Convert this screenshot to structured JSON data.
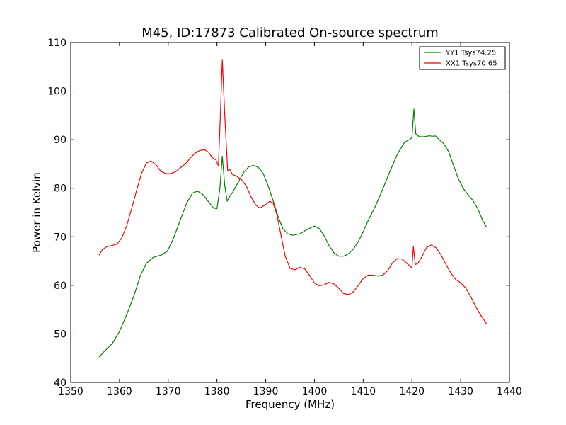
{
  "chart_data": {
    "type": "line",
    "title": "M45, ID:17873 Calibrated On-source spectrum",
    "xlabel": "Frequency (MHz)",
    "ylabel": "Power in Kelvin",
    "xlim": [
      1350,
      1440
    ],
    "ylim": [
      40,
      110
    ],
    "xticks": [
      1350,
      1360,
      1370,
      1380,
      1390,
      1400,
      1410,
      1420,
      1430,
      1440
    ],
    "yticks": [
      40,
      50,
      60,
      70,
      80,
      90,
      100,
      110
    ],
    "grid": false,
    "legend_position": "top-right",
    "series": [
      {
        "name": "YY1 Tsys74.25",
        "color": "#008000",
        "points": [
          [
            1355.8,
            45.2
          ],
          [
            1357.0,
            46.5
          ],
          [
            1358.5,
            48.0
          ],
          [
            1360.0,
            50.5
          ],
          [
            1361.5,
            54.0
          ],
          [
            1363.0,
            58.0
          ],
          [
            1364.3,
            62.0
          ],
          [
            1365.5,
            64.5
          ],
          [
            1367.0,
            65.8
          ],
          [
            1368.5,
            66.2
          ],
          [
            1369.8,
            67.0
          ],
          [
            1371.0,
            69.5
          ],
          [
            1372.5,
            73.5
          ],
          [
            1373.8,
            77.0
          ],
          [
            1375.0,
            79.0
          ],
          [
            1376.0,
            79.4
          ],
          [
            1377.0,
            78.8
          ],
          [
            1378.2,
            77.3
          ],
          [
            1379.3,
            75.9
          ],
          [
            1380.0,
            75.8
          ],
          [
            1380.6,
            80.0
          ],
          [
            1381.1,
            86.6
          ],
          [
            1381.6,
            80.5
          ],
          [
            1382.1,
            77.3
          ],
          [
            1382.6,
            78.3
          ],
          [
            1383.3,
            79.3
          ],
          [
            1384.5,
            81.5
          ],
          [
            1385.5,
            83.3
          ],
          [
            1386.5,
            84.4
          ],
          [
            1387.5,
            84.7
          ],
          [
            1388.5,
            84.3
          ],
          [
            1389.5,
            83.0
          ],
          [
            1390.5,
            80.5
          ],
          [
            1391.5,
            77.5
          ],
          [
            1392.5,
            74.3
          ],
          [
            1393.5,
            71.7
          ],
          [
            1394.5,
            70.6
          ],
          [
            1395.5,
            70.3
          ],
          [
            1397.0,
            70.6
          ],
          [
            1398.5,
            71.5
          ],
          [
            1400.0,
            72.2
          ],
          [
            1401.0,
            71.7
          ],
          [
            1402.0,
            70.2
          ],
          [
            1403.0,
            68.2
          ],
          [
            1404.0,
            66.7
          ],
          [
            1405.0,
            66.0
          ],
          [
            1406.0,
            66.0
          ],
          [
            1407.0,
            66.5
          ],
          [
            1408.0,
            67.5
          ],
          [
            1409.0,
            69.0
          ],
          [
            1410.0,
            71.0
          ],
          [
            1411.0,
            73.3
          ],
          [
            1412.5,
            76.3
          ],
          [
            1414.0,
            79.8
          ],
          [
            1415.5,
            83.5
          ],
          [
            1417.0,
            87.0
          ],
          [
            1418.5,
            89.5
          ],
          [
            1419.5,
            90.0
          ],
          [
            1420.0,
            90.4
          ],
          [
            1420.4,
            96.3
          ],
          [
            1420.8,
            91.2
          ],
          [
            1421.5,
            90.6
          ],
          [
            1422.5,
            90.6
          ],
          [
            1423.5,
            90.8
          ],
          [
            1424.5,
            90.7
          ],
          [
            1424.8,
            90.8
          ],
          [
            1425.5,
            90.1
          ],
          [
            1426.5,
            89.2
          ],
          [
            1427.5,
            87.6
          ],
          [
            1428.5,
            84.8
          ],
          [
            1429.5,
            82.0
          ],
          [
            1430.5,
            80.0
          ],
          [
            1431.5,
            78.7
          ],
          [
            1432.5,
            77.5
          ],
          [
            1433.5,
            75.8
          ],
          [
            1434.5,
            73.4
          ],
          [
            1435.3,
            72.0
          ]
        ]
      },
      {
        "name": "XX1 Tsys70.65",
        "color": "#ff0000",
        "points": [
          [
            1355.8,
            66.2
          ],
          [
            1356.5,
            67.4
          ],
          [
            1357.5,
            68.0
          ],
          [
            1358.5,
            68.2
          ],
          [
            1359.5,
            68.5
          ],
          [
            1360.5,
            69.8
          ],
          [
            1361.5,
            72.3
          ],
          [
            1362.5,
            75.8
          ],
          [
            1363.5,
            79.5
          ],
          [
            1364.5,
            83.0
          ],
          [
            1365.5,
            85.2
          ],
          [
            1366.5,
            85.6
          ],
          [
            1367.5,
            84.8
          ],
          [
            1368.5,
            83.5
          ],
          [
            1369.5,
            83.0
          ],
          [
            1370.5,
            83.0
          ],
          [
            1371.5,
            83.4
          ],
          [
            1372.5,
            84.2
          ],
          [
            1373.5,
            85.0
          ],
          [
            1374.5,
            86.2
          ],
          [
            1375.5,
            87.2
          ],
          [
            1376.5,
            87.8
          ],
          [
            1377.5,
            87.9
          ],
          [
            1378.3,
            87.4
          ],
          [
            1379.0,
            86.3
          ],
          [
            1379.8,
            85.8
          ],
          [
            1380.3,
            84.6
          ],
          [
            1380.7,
            95.0
          ],
          [
            1381.1,
            106.5
          ],
          [
            1381.6,
            95.0
          ],
          [
            1382.2,
            83.5
          ],
          [
            1382.6,
            83.9
          ],
          [
            1383.2,
            82.8
          ],
          [
            1384.0,
            82.5
          ],
          [
            1385.0,
            81.8
          ],
          [
            1386.0,
            80.5
          ],
          [
            1387.0,
            78.2
          ],
          [
            1388.0,
            76.5
          ],
          [
            1388.8,
            75.9
          ],
          [
            1389.8,
            76.5
          ],
          [
            1390.8,
            77.3
          ],
          [
            1391.5,
            77.0
          ],
          [
            1392.3,
            74.5
          ],
          [
            1393.2,
            70.0
          ],
          [
            1394.0,
            66.0
          ],
          [
            1395.0,
            63.5
          ],
          [
            1396.0,
            63.2
          ],
          [
            1397.0,
            63.7
          ],
          [
            1398.0,
            63.4
          ],
          [
            1399.0,
            62.0
          ],
          [
            1400.0,
            60.5
          ],
          [
            1401.0,
            59.9
          ],
          [
            1402.0,
            60.1
          ],
          [
            1403.0,
            60.6
          ],
          [
            1404.0,
            60.3
          ],
          [
            1405.0,
            59.4
          ],
          [
            1406.0,
            58.3
          ],
          [
            1407.0,
            58.1
          ],
          [
            1408.0,
            58.7
          ],
          [
            1409.0,
            60.0
          ],
          [
            1410.0,
            61.4
          ],
          [
            1411.0,
            62.1
          ],
          [
            1412.0,
            62.1
          ],
          [
            1413.0,
            61.9
          ],
          [
            1414.0,
            62.1
          ],
          [
            1415.0,
            63.0
          ],
          [
            1416.0,
            64.6
          ],
          [
            1417.0,
            65.5
          ],
          [
            1418.0,
            65.4
          ],
          [
            1419.0,
            64.5
          ],
          [
            1420.0,
            63.6
          ],
          [
            1420.3,
            68.0
          ],
          [
            1420.7,
            64.3
          ],
          [
            1421.2,
            64.5
          ],
          [
            1422.0,
            65.8
          ],
          [
            1423.0,
            67.8
          ],
          [
            1424.0,
            68.3
          ],
          [
            1425.0,
            67.7
          ],
          [
            1426.0,
            66.2
          ],
          [
            1427.0,
            64.3
          ],
          [
            1428.0,
            62.5
          ],
          [
            1429.0,
            61.2
          ],
          [
            1430.0,
            60.5
          ],
          [
            1431.0,
            59.5
          ],
          [
            1432.0,
            57.8
          ],
          [
            1433.0,
            55.8
          ],
          [
            1434.0,
            54.0
          ],
          [
            1435.3,
            52.1
          ]
        ]
      }
    ]
  }
}
